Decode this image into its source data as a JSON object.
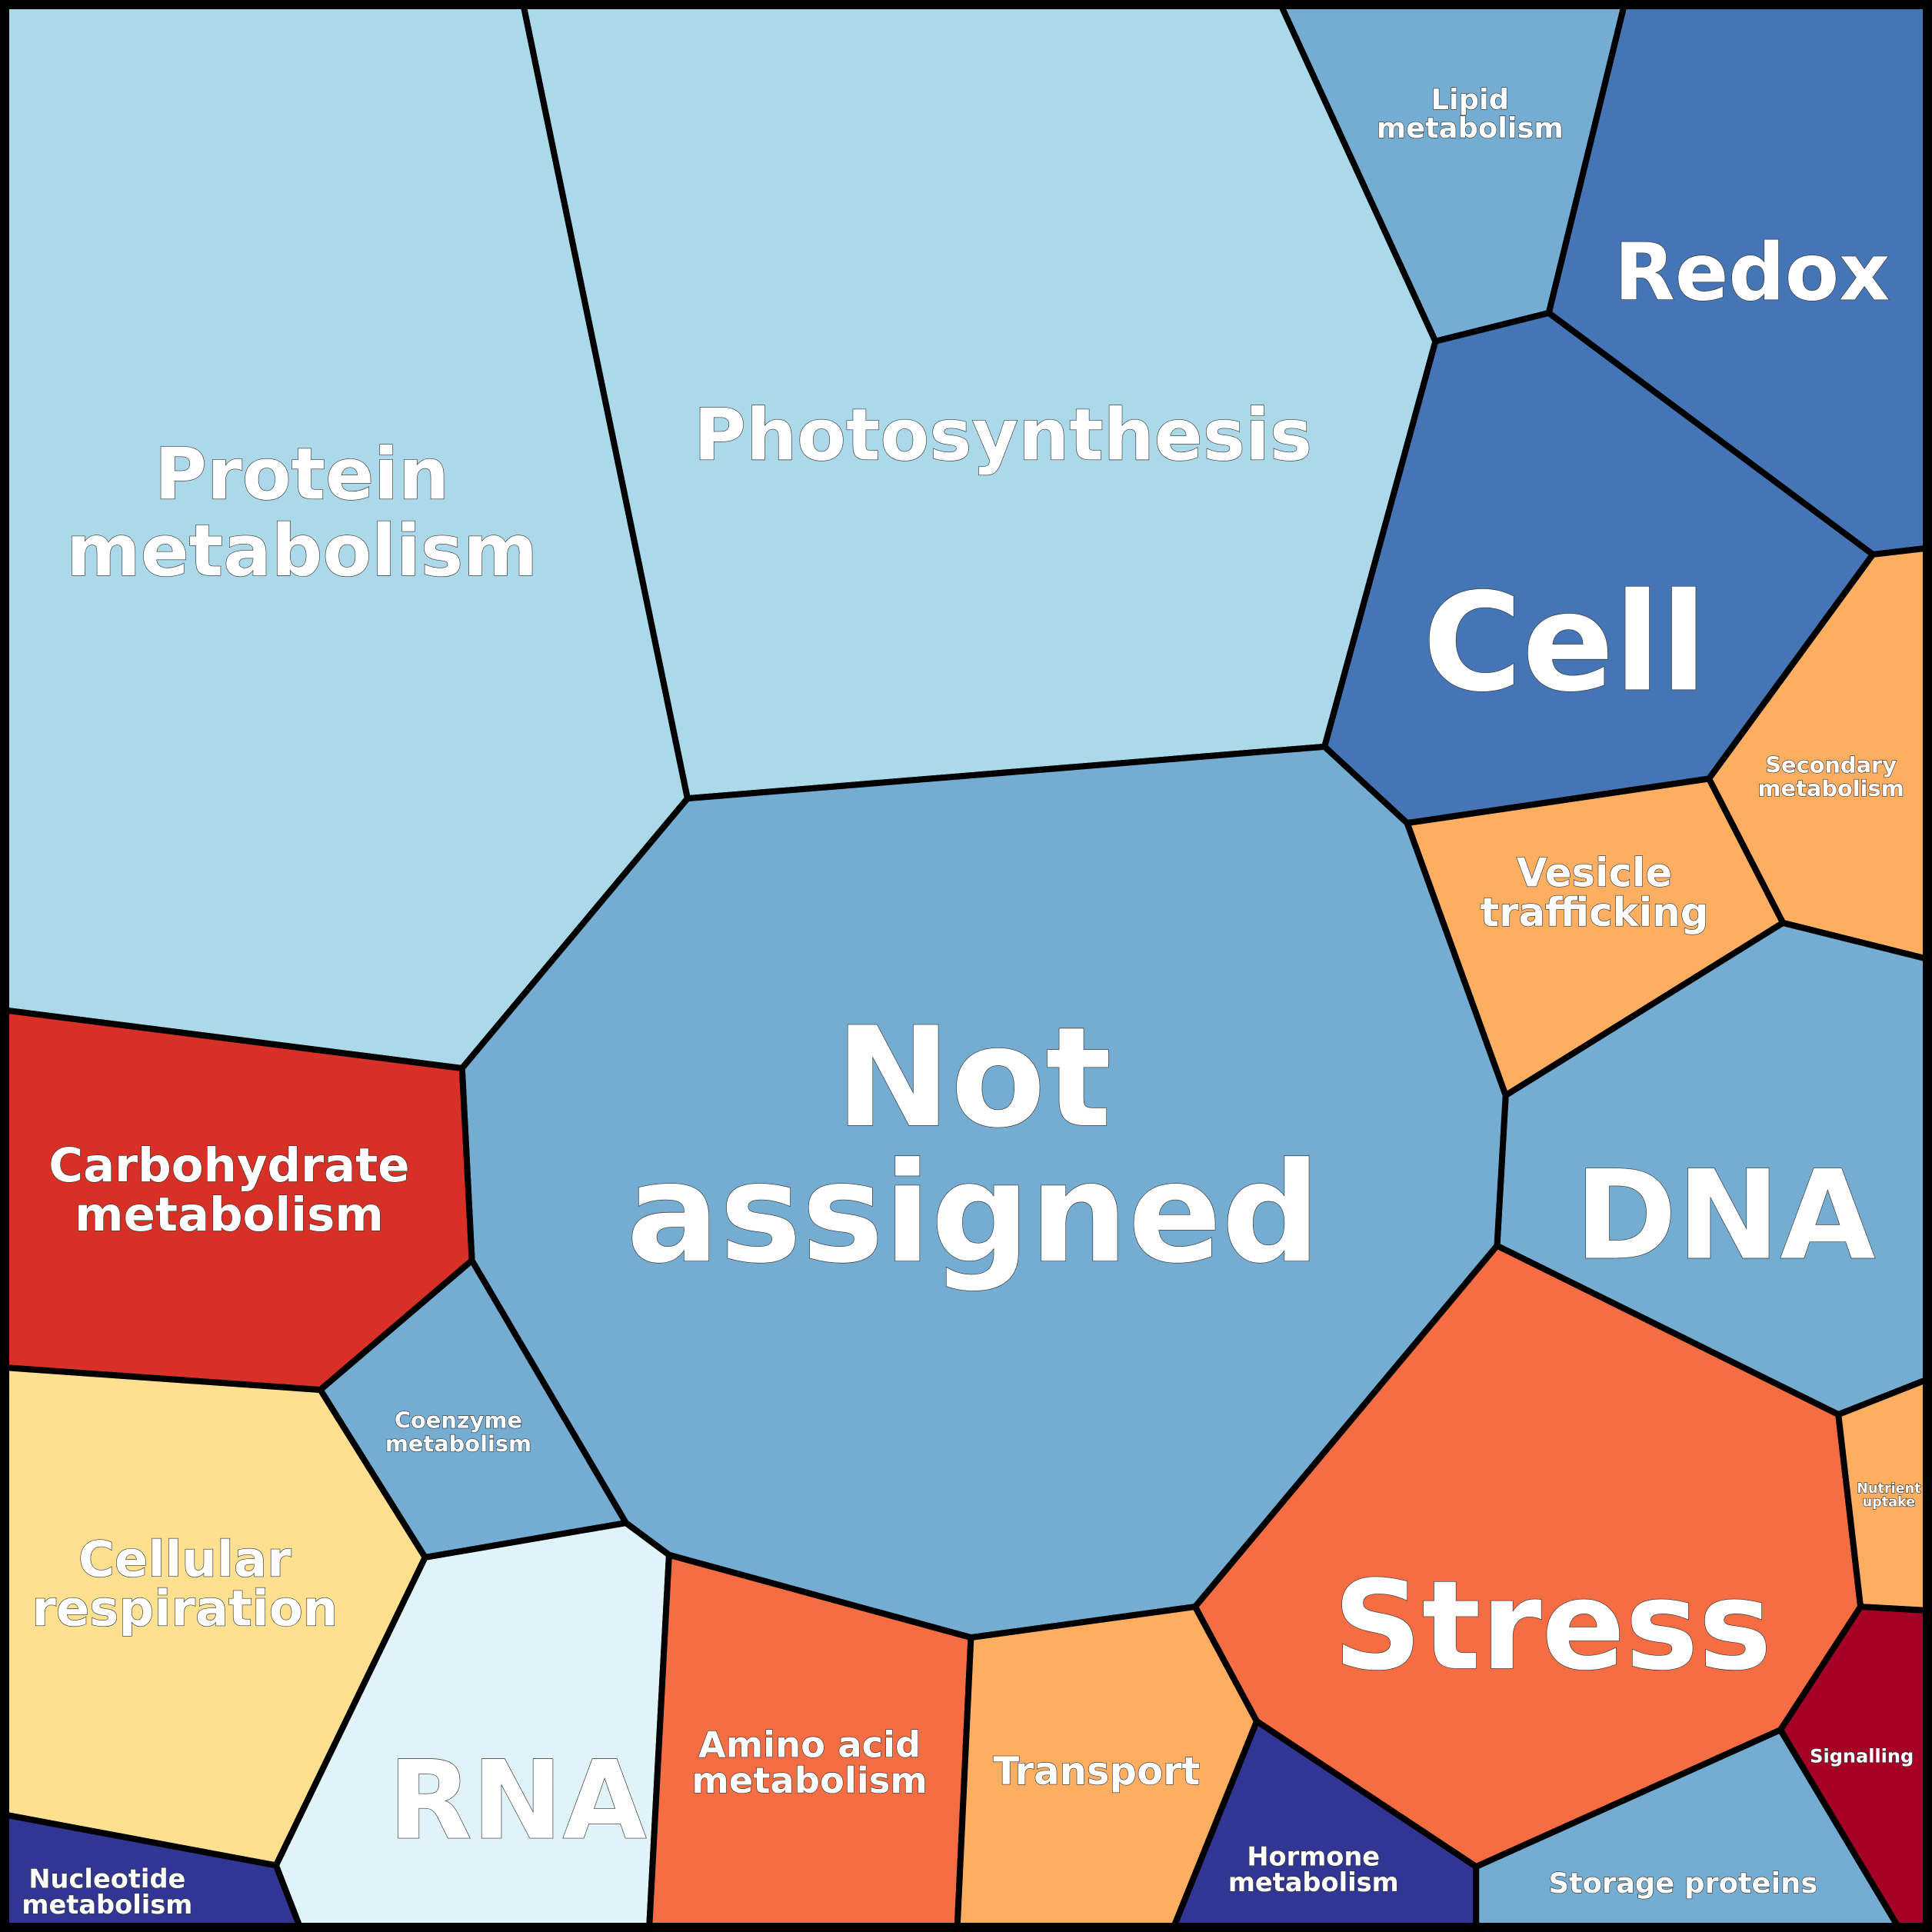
{
  "chart_data": {
    "type": "treemap",
    "subtype": "voronoi",
    "title": "",
    "cells": [
      {
        "key": "protein",
        "label": [
          "Protein",
          "metabolism"
        ],
        "color": "#abd9e9"
      },
      {
        "key": "photo",
        "label": [
          "Photosynthesis"
        ],
        "color": "#abd9e9"
      },
      {
        "key": "lipid",
        "label": [
          "Lipid",
          "metabolism"
        ],
        "color": "#74add1"
      },
      {
        "key": "redox",
        "label": [
          "Redox"
        ],
        "color": "#4575b4"
      },
      {
        "key": "cell",
        "label": [
          "Cell"
        ],
        "color": "#4575b4"
      },
      {
        "key": "secondary",
        "label": [
          "Secondary",
          "metabolism"
        ],
        "color": "#fdae61"
      },
      {
        "key": "vesicle",
        "label": [
          "Vesicle",
          "trafficking"
        ],
        "color": "#fdae61"
      },
      {
        "key": "dna",
        "label": [
          "DNA"
        ],
        "color": "#74add1"
      },
      {
        "key": "notassigned",
        "label": [
          "Not",
          "assigned"
        ],
        "color": "#74add1"
      },
      {
        "key": "carbo",
        "label": [
          "Carbohydrate",
          "metabolism"
        ],
        "color": "#d73027"
      },
      {
        "key": "coenzyme",
        "label": [
          "Coenzyme",
          "metabolism"
        ],
        "color": "#74add1"
      },
      {
        "key": "cellresp",
        "label": [
          "Cellular",
          "respiration"
        ],
        "color": "#fee090"
      },
      {
        "key": "rna",
        "label": [
          "RNA"
        ],
        "color": "#e0f3f8"
      },
      {
        "key": "nucleotide",
        "label": [
          "Nucleotide",
          "metabolism"
        ],
        "color": "#313695"
      },
      {
        "key": "amino",
        "label": [
          "Amino acid",
          "metabolism"
        ],
        "color": "#f46d43"
      },
      {
        "key": "transport",
        "label": [
          "Transport"
        ],
        "color": "#fdae61"
      },
      {
        "key": "stress",
        "label": [
          "Stress"
        ],
        "color": "#f46d43"
      },
      {
        "key": "nutrient",
        "label": [
          "Nutrient",
          "uptake"
        ],
        "color": "#fdae61"
      },
      {
        "key": "signalling",
        "label": [
          "Signalling"
        ],
        "color": "#a50026"
      },
      {
        "key": "hormone",
        "label": [
          "Hormone",
          "metabolism"
        ],
        "color": "#313695"
      },
      {
        "key": "storage",
        "label": [
          "Storage proteins"
        ],
        "color": "#74add1"
      }
    ]
  }
}
